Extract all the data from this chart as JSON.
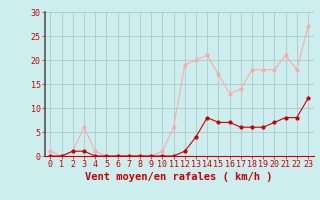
{
  "x": [
    0,
    1,
    2,
    3,
    4,
    5,
    6,
    7,
    8,
    9,
    10,
    11,
    12,
    13,
    14,
    15,
    16,
    17,
    18,
    19,
    20,
    21,
    22,
    23
  ],
  "wind_mean": [
    0,
    0,
    1,
    1,
    0,
    0,
    0,
    0,
    0,
    0,
    0,
    0,
    1,
    4,
    8,
    7,
    7,
    6,
    6,
    6,
    7,
    8,
    8,
    12
  ],
  "wind_gust": [
    1,
    0,
    1,
    6,
    1,
    0,
    0,
    0,
    0,
    0,
    1,
    6,
    19,
    20,
    21,
    17,
    13,
    14,
    18,
    18,
    18,
    21,
    18,
    27
  ],
  "xlabel": "Vent moyen/en rafales ( km/h )",
  "ylim": [
    0,
    30
  ],
  "xlim_min": -0.5,
  "xlim_max": 23.5,
  "yticks": [
    0,
    5,
    10,
    15,
    20,
    25,
    30
  ],
  "xticks": [
    0,
    1,
    2,
    3,
    4,
    5,
    6,
    7,
    8,
    9,
    10,
    11,
    12,
    13,
    14,
    15,
    16,
    17,
    18,
    19,
    20,
    21,
    22,
    23
  ],
  "color_mean": "#cc0000",
  "color_gust": "#ffaaaa",
  "bg_color": "#cceeee",
  "grid_color": "#b0c8c8",
  "text_color": "#cc0000",
  "tick_fontsize": 6,
  "xlabel_fontsize": 7.5,
  "left_spine_color": "#555555"
}
